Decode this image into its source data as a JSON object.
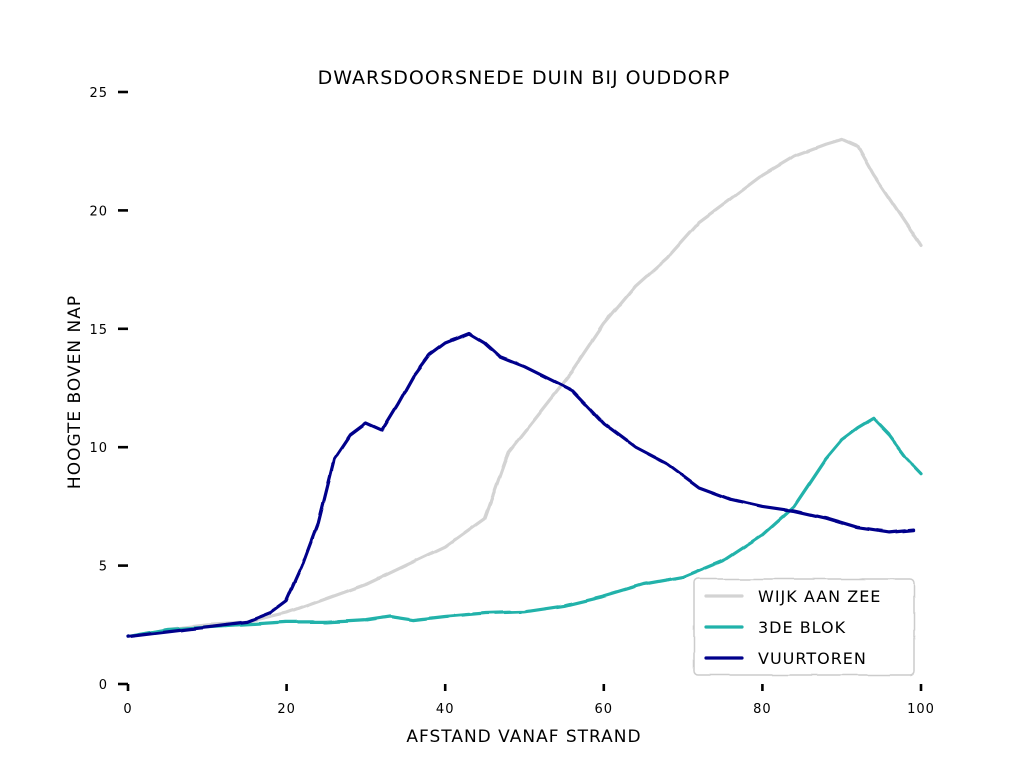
{
  "chart_data": {
    "type": "line",
    "title": "Dwarsdoorsnede duin bij Ouddorp",
    "xlabel": "Afstand vanaf strand",
    "ylabel": "Hoogte boven NAP",
    "xlim": [
      0,
      100
    ],
    "ylim": [
      0,
      25
    ],
    "xticks": [
      "0",
      "20",
      "40",
      "60",
      "80",
      "100"
    ],
    "yticks": [
      "0",
      "5",
      "10",
      "15",
      "20",
      "25"
    ],
    "grid": false,
    "legend_position": "bottom-right",
    "series": [
      {
        "name": "Wijk aan Zee",
        "color": "#d3d3d3",
        "x": [
          0,
          5,
          10,
          15,
          20,
          25,
          30,
          35,
          40,
          45,
          48,
          52,
          56,
          60,
          64,
          68,
          72,
          76,
          80,
          84,
          88,
          90,
          92,
          94,
          96,
          98,
          100
        ],
        "y": [
          2.0,
          2.3,
          2.5,
          2.6,
          3.0,
          3.6,
          4.2,
          5.0,
          5.8,
          7.0,
          9.8,
          11.5,
          13.2,
          15.2,
          16.8,
          18.0,
          19.5,
          20.5,
          21.5,
          22.3,
          22.8,
          23.0,
          22.7,
          21.5,
          20.5,
          19.5,
          18.5
        ]
      },
      {
        "name": "3de blok",
        "color": "#20b2aa",
        "x": [
          0,
          5,
          10,
          15,
          20,
          25,
          30,
          33,
          36,
          40,
          45,
          50,
          55,
          60,
          65,
          70,
          75,
          80,
          84,
          86,
          88,
          90,
          92,
          94,
          96,
          98,
          100
        ],
        "y": [
          2.0,
          2.3,
          2.4,
          2.5,
          2.6,
          2.6,
          2.7,
          2.85,
          2.7,
          2.85,
          3.0,
          3.05,
          3.3,
          3.7,
          4.2,
          4.5,
          5.2,
          6.3,
          7.5,
          8.5,
          9.5,
          10.3,
          10.8,
          11.2,
          10.5,
          9.6,
          8.9
        ]
      },
      {
        "name": "Vuurtoren",
        "color": "#00008b",
        "x": [
          0,
          5,
          10,
          15,
          18,
          20,
          22,
          24,
          26,
          28,
          30,
          32,
          34,
          36,
          38,
          40,
          43,
          45,
          47,
          50,
          53,
          56,
          60,
          64,
          68,
          72,
          76,
          80,
          84,
          88,
          92,
          96,
          99
        ],
        "y": [
          2.0,
          2.2,
          2.4,
          2.6,
          3.0,
          3.5,
          5.0,
          6.8,
          9.5,
          10.5,
          11.0,
          10.7,
          11.8,
          13.0,
          13.9,
          14.4,
          14.8,
          14.4,
          13.8,
          13.4,
          12.9,
          12.4,
          11.0,
          10.0,
          9.3,
          8.3,
          7.8,
          7.5,
          7.3,
          7.0,
          6.6,
          6.4,
          6.5
        ]
      }
    ]
  }
}
